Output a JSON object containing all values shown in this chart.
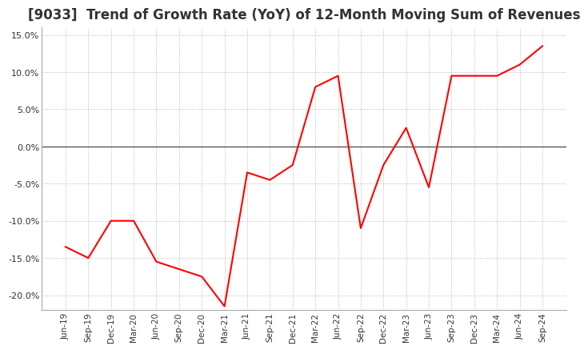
{
  "title": "[9033]  Trend of Growth Rate (YoY) of 12-Month Moving Sum of Revenues",
  "title_fontsize": 12,
  "x_labels": [
    "Jun-19",
    "Sep-19",
    "Dec-19",
    "Mar-20",
    "Jun-20",
    "Sep-20",
    "Dec-20",
    "Mar-21",
    "Jun-21",
    "Sep-21",
    "Dec-21",
    "Mar-22",
    "Jun-22",
    "Sep-22",
    "Dec-22",
    "Mar-23",
    "Jun-23",
    "Sep-23",
    "Dec-23",
    "Mar-24",
    "Jun-24",
    "Sep-24"
  ],
  "y_values": [
    -13.5,
    -15.0,
    -10.0,
    -10.0,
    -15.5,
    -16.5,
    -17.5,
    -21.5,
    -3.5,
    -4.5,
    -2.5,
    8.0,
    9.5,
    -11.0,
    -2.5,
    2.5,
    -5.5,
    9.5,
    9.5,
    9.5,
    11.0,
    13.5
  ],
  "line_color": "#ff0000",
  "ylim": [
    -22,
    16
  ],
  "yticks": [
    -20.0,
    -15.0,
    -10.0,
    -5.0,
    0.0,
    5.0,
    10.0,
    15.0
  ],
  "grid_color": "#aaaaaa",
  "background_color": "#ffffff",
  "plot_bg_color": "#ffffff",
  "title_color": "#333333"
}
